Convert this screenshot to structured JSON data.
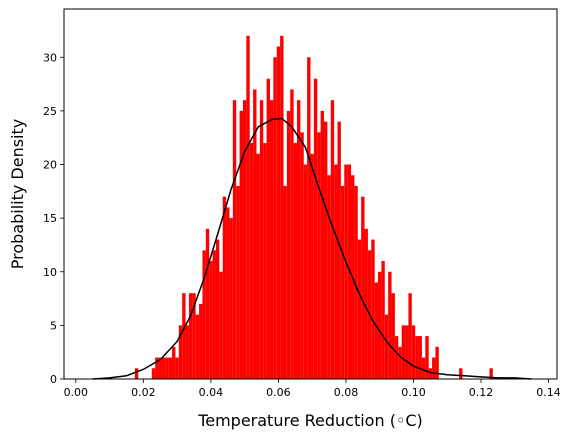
{
  "chart_data": {
    "type": "bar",
    "title": "",
    "xlabel": "Temperature Reduction (◦C)",
    "ylabel": "Probability Density",
    "xlim": [
      -0.0035,
      0.1425
    ],
    "ylim": [
      0,
      34.5
    ],
    "xticks": [
      0.0,
      0.02,
      0.04,
      0.06,
      0.08,
      0.1,
      0.12,
      0.14
    ],
    "xtick_labels": [
      "0.00",
      "0.02",
      "0.04",
      "0.06",
      "0.08",
      "0.10",
      "0.12",
      "0.14"
    ],
    "yticks": [
      0,
      5,
      10,
      15,
      20,
      25,
      30
    ],
    "ytick_labels": [
      "0",
      "5",
      "10",
      "15",
      "20",
      "25",
      "30"
    ],
    "grid": false,
    "series": [
      {
        "type": "histogram",
        "color": "#ff0000",
        "bin_width": 0.001,
        "bin_left_edges": [
          0.0175,
          0.0225,
          0.0235,
          0.0245,
          0.0255,
          0.0265,
          0.0275,
          0.0285,
          0.0295,
          0.0305,
          0.0315,
          0.0325,
          0.0335,
          0.0345,
          0.0355,
          0.0365,
          0.0375,
          0.0385,
          0.0395,
          0.0405,
          0.0415,
          0.0425,
          0.0435,
          0.0445,
          0.0455,
          0.0465,
          0.0475,
          0.0485,
          0.0495,
          0.0505,
          0.0515,
          0.0525,
          0.0535,
          0.0545,
          0.0555,
          0.0565,
          0.0575,
          0.0585,
          0.0595,
          0.0605,
          0.0615,
          0.0625,
          0.0635,
          0.0645,
          0.0655,
          0.0665,
          0.0675,
          0.0685,
          0.0695,
          0.0705,
          0.0715,
          0.0725,
          0.0735,
          0.0745,
          0.0755,
          0.0765,
          0.0775,
          0.0785,
          0.0795,
          0.0805,
          0.0815,
          0.0825,
          0.0835,
          0.0845,
          0.0855,
          0.0865,
          0.0875,
          0.0885,
          0.0895,
          0.0905,
          0.0915,
          0.0925,
          0.0935,
          0.0945,
          0.0955,
          0.0965,
          0.0975,
          0.0985,
          0.0995,
          0.1005,
          0.1015,
          0.1025,
          0.1035,
          0.1045,
          0.1055,
          0.1065,
          0.1135,
          0.1225
        ],
        "values": [
          1,
          1,
          2,
          2,
          2,
          2,
          2,
          3,
          2,
          5,
          8,
          5,
          8,
          8,
          6,
          7,
          12,
          14,
          11,
          12,
          13,
          10,
          17,
          16,
          15,
          26,
          18,
          25,
          26,
          32,
          22,
          27,
          21,
          26,
          22,
          28,
          26,
          30,
          31,
          32,
          18,
          25,
          27,
          22,
          26,
          23,
          20,
          30,
          21,
          28,
          23,
          25,
          24,
          19,
          26,
          20,
          24,
          18,
          20,
          20,
          19,
          18,
          13,
          17,
          14,
          12,
          13,
          9,
          10,
          11,
          6,
          10,
          8,
          4,
          3,
          5,
          5,
          8,
          5,
          4,
          4,
          2,
          4,
          1,
          2,
          3,
          1,
          1
        ]
      },
      {
        "type": "line",
        "color": "#000000",
        "x": [
          0.005,
          0.01,
          0.015,
          0.02,
          0.025,
          0.03,
          0.034,
          0.038,
          0.042,
          0.046,
          0.05,
          0.054,
          0.058,
          0.061,
          0.064,
          0.068,
          0.072,
          0.076,
          0.08,
          0.084,
          0.088,
          0.092,
          0.096,
          0.1,
          0.105,
          0.11,
          0.115,
          0.12,
          0.125,
          0.13,
          0.135
        ],
        "y": [
          0.0,
          0.1,
          0.3,
          0.9,
          1.8,
          3.5,
          5.9,
          9.4,
          13.5,
          17.7,
          21.2,
          23.5,
          24.2,
          24.3,
          23.5,
          21.6,
          17.8,
          14.2,
          10.9,
          7.9,
          5.4,
          3.5,
          2.1,
          1.2,
          0.6,
          0.4,
          0.3,
          0.2,
          0.1,
          0.1,
          0.0
        ]
      }
    ]
  }
}
